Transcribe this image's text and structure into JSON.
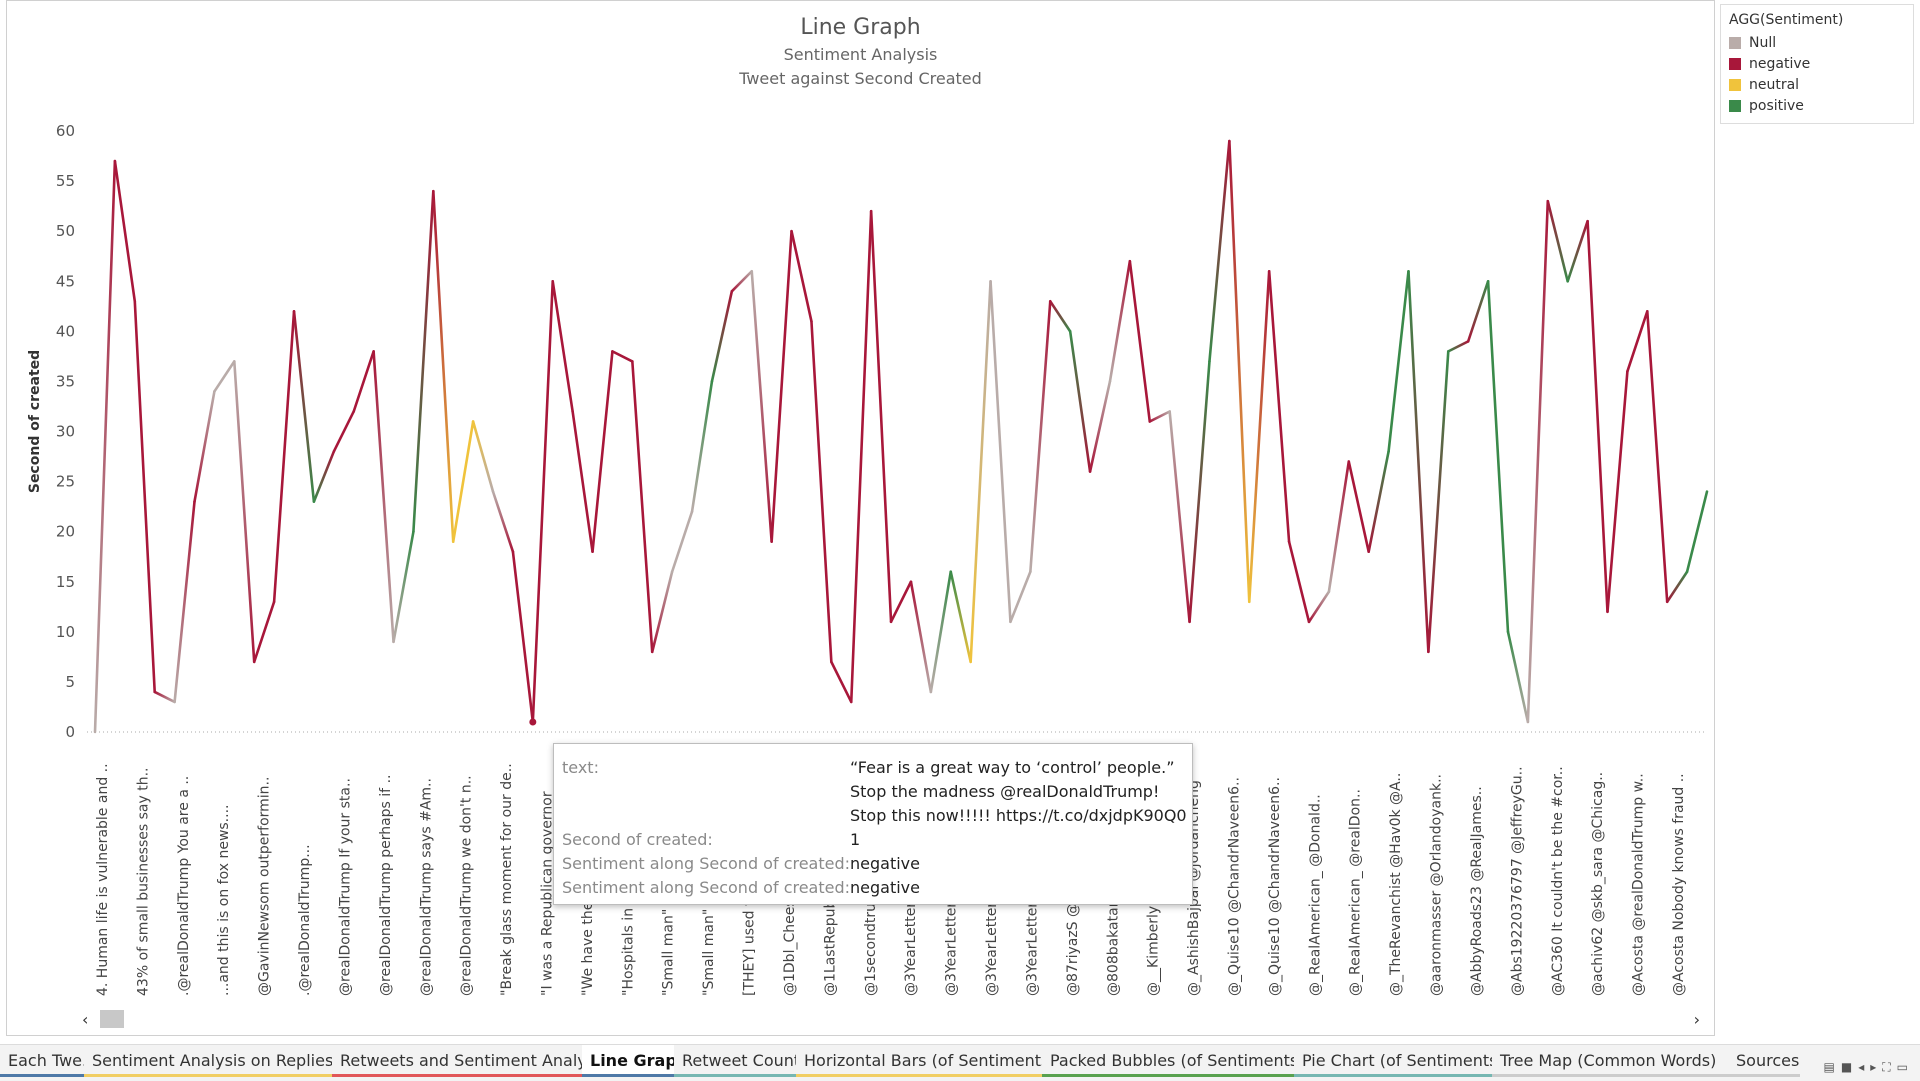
{
  "legend": {
    "title": "AGG(Sentiment)",
    "items": [
      {
        "label": "Null",
        "color": "#b9aca9"
      },
      {
        "label": "negative",
        "color": "#a8173a"
      },
      {
        "label": "neutral",
        "color": "#f0c33c"
      },
      {
        "label": "positive",
        "color": "#3a8a4a"
      }
    ]
  },
  "tooltip": {
    "rows": [
      {
        "label": "text:",
        "lines": [
          "“Fear is a great way to ‘control’ people.”",
          "Stop the madness @realDonaldTrump!",
          "Stop this now!!!!! https://t.co/dxjdpK90Q0"
        ]
      },
      {
        "label": "Second of created:",
        "lines": [
          "1"
        ]
      },
      {
        "label": "Sentiment along Second of created:",
        "lines": [
          "negative"
        ]
      },
      {
        "label": "Sentiment along Second of created:",
        "lines": [
          "negative"
        ]
      }
    ]
  },
  "scroll": {
    "left": "‹",
    "right": "›"
  },
  "tabs": [
    {
      "label": "Each Twe...",
      "color": "#4e79a7"
    },
    {
      "label": "Sentiment Analysis on Replies t...",
      "color": "#f1ce63"
    },
    {
      "label": "Retweets and Sentiment Analysis",
      "color": "#e15759"
    },
    {
      "label": "Line Graph",
      "color": "#4e79a7",
      "active": true
    },
    {
      "label": "Retweet Count",
      "color": "#76b7b2"
    },
    {
      "label": "Horizontal Bars (of Sentiments)",
      "color": "#f1ce63"
    },
    {
      "label": "Packed Bubbles (of Sentiments)",
      "color": "#59a14f"
    },
    {
      "label": "Pie Chart (of Sentiments)",
      "color": "#76b7b2"
    },
    {
      "label": "Tree Map (Common Words)",
      "color": "#cccccc"
    },
    {
      "label": "Sources",
      "color": "#cccccc"
    }
  ],
  "chart_data": {
    "type": "line",
    "title": "Line Graph",
    "subtitle": "Sentiment Analysis",
    "subtitle2": "Tweet against Second Created",
    "ylabel": "Second of created",
    "xlabel": "",
    "ylim": [
      0,
      62
    ],
    "yticks": [
      0,
      5,
      10,
      15,
      20,
      25,
      30,
      35,
      40,
      45,
      50,
      55,
      60
    ],
    "grid": false,
    "zero_line": "dotted",
    "sentiment_colors": {
      "Null": "#b9aca9",
      "negative": "#a8173a",
      "neutral": "#f0c33c",
      "positive": "#3a8a4a"
    },
    "tick_labels": [
      "4. Human life is vulnerable and ..",
      "43% of small businesses say th..",
      ".@realDonaldTrump You are a ..",
      "...and this is on fox news....",
      "@GavinNewsom outperformin..",
      ".@realDonaldTrump...",
      "@realDonaldTrump If your sta..",
      "@realDonaldTrump perhaps if ..",
      "@realDonaldTrump says #Am..",
      "@realDonaldTrump we don't n..",
      "\"Break glass moment for our de..",
      "\"I was a Republican governor",
      "\"We have the",
      "\"Hospitals in",
      "\"Small man\" @",
      "\"Small man\" @",
      "[THEY] used t",
      "@1Dbl_Chees",
      "@1LastRepub",
      "@1secondtrum",
      "@3YearLetter",
      "@3YearLetter",
      "@3YearLetter",
      "@3YearLetter",
      "@87riyazS @",
      "@808bakatar",
      "@__Kimberly",
      "@_AshishBajpai @jordancheng",
      "@_Quise10 @ChandrNaveen6..",
      "@_Quise10 @ChandrNaveen6..",
      "@_RealAmerican_ @Donald..",
      "@_RealAmerican_ @realDon..",
      "@_TheRevanchist @Hav0k @A..",
      "@aaronmasser @Orlandoyank..",
      "@AbbyRoads23 @RealJames..",
      "@Abs19220376797 @JeffreyGu..",
      "@AC360 It couldn't be the #cor..",
      "@achiv62 @skb_sara @Chicag..",
      "@Acosta @realDonaldTrump w..",
      "@Acosta Nobody knows fraud .."
    ],
    "points": [
      {
        "y": 0,
        "s": "Null"
      },
      {
        "y": 57,
        "s": "negative"
      },
      {
        "y": 43,
        "s": "negative"
      },
      {
        "y": 4,
        "s": "negative"
      },
      {
        "y": 3,
        "s": "Null"
      },
      {
        "y": 23,
        "s": "negative"
      },
      {
        "y": 34,
        "s": "Null"
      },
      {
        "y": 37,
        "s": "Null"
      },
      {
        "y": 7,
        "s": "negative"
      },
      {
        "y": 13,
        "s": "negative"
      },
      {
        "y": 42,
        "s": "negative"
      },
      {
        "y": 23,
        "s": "positive"
      },
      {
        "y": 28,
        "s": "negative"
      },
      {
        "y": 32,
        "s": "negative"
      },
      {
        "y": 38,
        "s": "negative"
      },
      {
        "y": 9,
        "s": "Null"
      },
      {
        "y": 20,
        "s": "positive"
      },
      {
        "y": 54,
        "s": "negative"
      },
      {
        "y": 19,
        "s": "neutral"
      },
      {
        "y": 31,
        "s": "neutral"
      },
      {
        "y": 24,
        "s": "Null"
      },
      {
        "y": 18,
        "s": "negative"
      },
      {
        "y": 1,
        "s": "negative"
      },
      {
        "y": 45,
        "s": "negative"
      },
      {
        "y": 32,
        "s": "negative"
      },
      {
        "y": 18,
        "s": "negative"
      },
      {
        "y": 38,
        "s": "negative"
      },
      {
        "y": 37,
        "s": "negative"
      },
      {
        "y": 8,
        "s": "negative"
      },
      {
        "y": 16,
        "s": "Null"
      },
      {
        "y": 22,
        "s": "Null"
      },
      {
        "y": 35,
        "s": "positive"
      },
      {
        "y": 44,
        "s": "negative"
      },
      {
        "y": 46,
        "s": "Null"
      },
      {
        "y": 19,
        "s": "negative"
      },
      {
        "y": 50,
        "s": "negative"
      },
      {
        "y": 41,
        "s": "negative"
      },
      {
        "y": 7,
        "s": "negative"
      },
      {
        "y": 3,
        "s": "negative"
      },
      {
        "y": 52,
        "s": "negative"
      },
      {
        "y": 11,
        "s": "negative"
      },
      {
        "y": 15,
        "s": "negative"
      },
      {
        "y": 4,
        "s": "Null"
      },
      {
        "y": 16,
        "s": "positive"
      },
      {
        "y": 7,
        "s": "neutral"
      },
      {
        "y": 45,
        "s": "Null"
      },
      {
        "y": 11,
        "s": "Null"
      },
      {
        "y": 16,
        "s": "Null"
      },
      {
        "y": 43,
        "s": "negative"
      },
      {
        "y": 40,
        "s": "positive"
      },
      {
        "y": 26,
        "s": "negative"
      },
      {
        "y": 35,
        "s": "Null"
      },
      {
        "y": 47,
        "s": "negative"
      },
      {
        "y": 31,
        "s": "negative"
      },
      {
        "y": 32,
        "s": "Null"
      },
      {
        "y": 11,
        "s": "negative"
      },
      {
        "y": 37,
        "s": "positive"
      },
      {
        "y": 59,
        "s": "negative"
      },
      {
        "y": 13,
        "s": "neutral"
      },
      {
        "y": 46,
        "s": "negative"
      },
      {
        "y": 19,
        "s": "negative"
      },
      {
        "y": 11,
        "s": "negative"
      },
      {
        "y": 14,
        "s": "Null"
      },
      {
        "y": 27,
        "s": "negative"
      },
      {
        "y": 18,
        "s": "negative"
      },
      {
        "y": 28,
        "s": "positive"
      },
      {
        "y": 46,
        "s": "positive"
      },
      {
        "y": 8,
        "s": "negative"
      },
      {
        "y": 38,
        "s": "positive"
      },
      {
        "y": 39,
        "s": "negative"
      },
      {
        "y": 45,
        "s": "positive"
      },
      {
        "y": 10,
        "s": "positive"
      },
      {
        "y": 1,
        "s": "Null"
      },
      {
        "y": 53,
        "s": "negative"
      },
      {
        "y": 45,
        "s": "positive"
      },
      {
        "y": 51,
        "s": "negative"
      },
      {
        "y": 12,
        "s": "negative"
      },
      {
        "y": 36,
        "s": "negative"
      },
      {
        "y": 42,
        "s": "negative"
      },
      {
        "y": 13,
        "s": "negative"
      },
      {
        "y": 16,
        "s": "positive"
      },
      {
        "y": 24,
        "s": "positive"
      }
    ],
    "highlighted_point": 22
  }
}
